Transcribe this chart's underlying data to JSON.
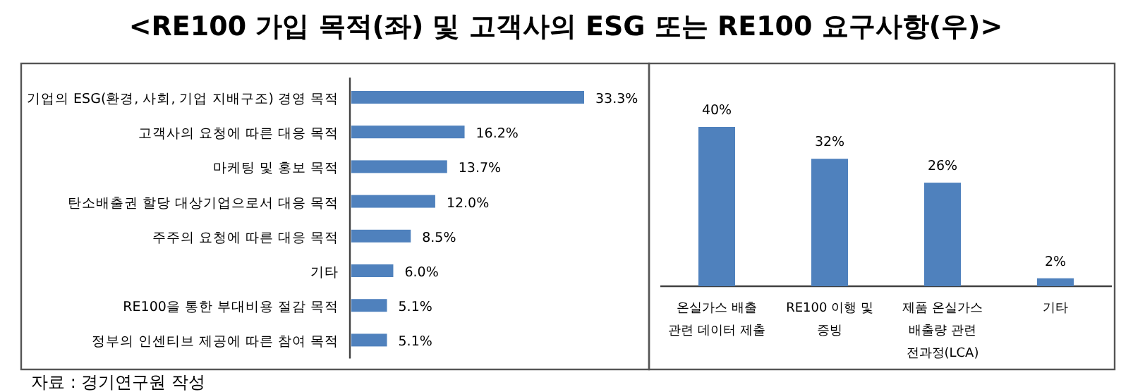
{
  "chart_data": [
    {
      "type": "bar",
      "orientation": "horizontal",
      "title": "<RE100 가입 목적(좌) 및 고객사의 ESG 또는 RE100 요구사항(우)>",
      "categories": [
        "기업의 ESG(환경, 사회, 기업 지배구조) 경영 목적",
        "고객사의 요청에 따른 대응 목적",
        "마케팅 및 홍보 목적",
        "탄소배출권 할당 대상기업으로서 대응 목적",
        "주주의 요청에 따른 대응 목적",
        "기타",
        "RE100을 통한 부대비용 절감 목적",
        "정부의 인센티브 제공에 따른 참여 목적"
      ],
      "values": [
        33.3,
        16.2,
        13.7,
        12.0,
        8.5,
        6.0,
        5.1,
        5.1
      ],
      "value_labels": [
        "33.3%",
        "16.2%",
        "13.7%",
        "12.0%",
        "8.5%",
        "6.0%",
        "5.1%",
        "5.1%"
      ],
      "color": "#4f81bd",
      "annotations": [
        "자료 : 경기연구원 작성"
      ]
    },
    {
      "type": "bar",
      "categories": [
        "온실가스 배출 관련 데이터 제출",
        "RE100 이행 및 증빙",
        "제품 온실가스 배출량 관련 전과정(LCA)",
        "기타"
      ],
      "values": [
        40,
        32,
        26,
        2
      ],
      "value_labels": [
        "40%",
        "32%",
        "26%",
        "2%"
      ],
      "color": "#4f81bd"
    }
  ]
}
